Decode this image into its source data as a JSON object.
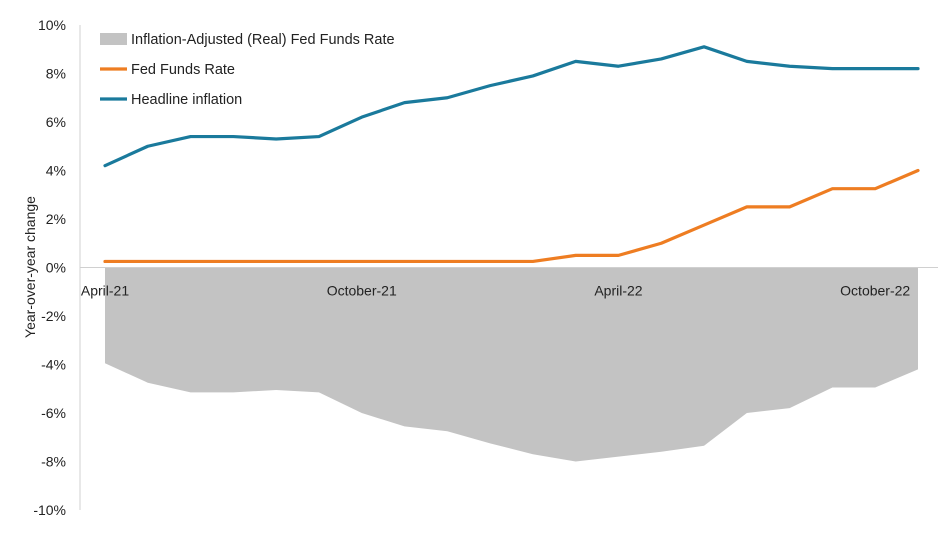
{
  "chart_data": {
    "type": "line",
    "ylabel": "Year-over-year change",
    "ylim": [
      -10,
      10
    ],
    "yticks": [
      10,
      8,
      6,
      4,
      2,
      0,
      -2,
      -4,
      -6,
      -8,
      -10
    ],
    "ytick_labels": [
      "10%",
      "8%",
      "6%",
      "4%",
      "2%",
      "0%",
      "-2%",
      "-4%",
      "-6%",
      "-8%",
      "-10%"
    ],
    "x": [
      "Apr-21",
      "May-21",
      "Jun-21",
      "Jul-21",
      "Aug-21",
      "Sep-21",
      "Oct-21",
      "Nov-21",
      "Dec-21",
      "Jan-22",
      "Feb-22",
      "Mar-22",
      "Apr-22",
      "May-22",
      "Jun-22",
      "Jul-22",
      "Aug-22",
      "Sep-22",
      "Oct-22",
      "Nov-22"
    ],
    "xtick_labels": [
      {
        "index": 0,
        "label": "April-21"
      },
      {
        "index": 6,
        "label": "October-21"
      },
      {
        "index": 12,
        "label": "April-22"
      },
      {
        "index": 18,
        "label": "October-22"
      }
    ],
    "legend_position": "top-left",
    "grid": false,
    "series": [
      {
        "name": "Inflation-Adjusted (Real) Fed Funds Rate",
        "type": "area",
        "color": "#c3c3c3",
        "values": [
          -3.95,
          -4.75,
          -5.15,
          -5.15,
          -5.05,
          -5.15,
          -6.0,
          -6.55,
          -6.75,
          -7.25,
          -7.7,
          -8.0,
          -7.8,
          -7.6,
          -7.35,
          -6.0,
          -5.8,
          -4.95,
          -4.95,
          -4.2
        ]
      },
      {
        "name": "Fed Funds Rate",
        "type": "line",
        "color": "#ee7d22",
        "values": [
          0.25,
          0.25,
          0.25,
          0.25,
          0.25,
          0.25,
          0.25,
          0.25,
          0.25,
          0.25,
          0.25,
          0.5,
          0.5,
          1.0,
          1.75,
          2.5,
          2.5,
          3.25,
          3.25,
          4.0
        ]
      },
      {
        "name": "Headline inflation",
        "type": "line",
        "color": "#1a7a9c",
        "values": [
          4.2,
          5.0,
          5.4,
          5.4,
          5.3,
          5.4,
          6.2,
          6.8,
          7.0,
          7.5,
          7.9,
          8.5,
          8.3,
          8.6,
          9.1,
          8.5,
          8.3,
          8.2,
          8.2,
          8.2
        ]
      }
    ]
  }
}
